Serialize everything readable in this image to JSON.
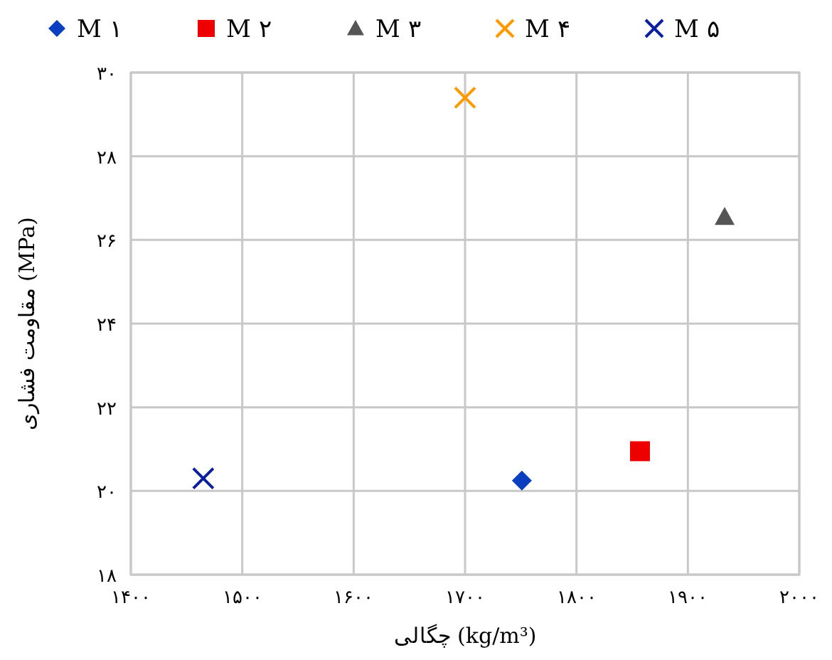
{
  "chart_data": {
    "type": "scatter",
    "xlabel": "چگالی (kg/m³)",
    "ylabel": "مقاومت فشاری (MPa)",
    "xlim": [
      1400,
      2000
    ],
    "ylim": [
      18,
      30
    ],
    "xticks": [
      {
        "value": 1400,
        "label": "۱۴۰۰"
      },
      {
        "value": 1500,
        "label": "۱۵۰۰"
      },
      {
        "value": 1600,
        "label": "۱۶۰۰"
      },
      {
        "value": 1700,
        "label": "۱۷۰۰"
      },
      {
        "value": 1800,
        "label": "۱۸۰۰"
      },
      {
        "value": 1900,
        "label": "۱۹۰۰"
      },
      {
        "value": 2000,
        "label": "۲۰۰۰"
      }
    ],
    "yticks": [
      {
        "value": 18,
        "label": "۱۸"
      },
      {
        "value": 20,
        "label": "۲۰"
      },
      {
        "value": 22,
        "label": "۲۲"
      },
      {
        "value": 24,
        "label": "۲۴"
      },
      {
        "value": 26,
        "label": "۲۶"
      },
      {
        "value": 28,
        "label": "۲۸"
      },
      {
        "value": 30,
        "label": "۳۰"
      }
    ],
    "grid": true,
    "legend": "top",
    "series": [
      {
        "name": "M ۱",
        "color": "#0a3fbf",
        "marker": "diamond",
        "x": [
          1751
        ],
        "values": [
          20.25
        ]
      },
      {
        "name": "M ۲",
        "color": "#ee0000",
        "marker": "square",
        "x": [
          1857
        ],
        "values": [
          20.95
        ]
      },
      {
        "name": "M ۳",
        "color": "#555555",
        "marker": "triangle",
        "x": [
          1933
        ],
        "values": [
          26.55
        ]
      },
      {
        "name": "M ۴",
        "color": "#ff9900",
        "marker": "cross",
        "x": [
          1700
        ],
        "values": [
          29.4
        ]
      },
      {
        "name": "M ۵",
        "color": "#0a1f9f",
        "marker": "cross",
        "x": [
          1465
        ],
        "values": [
          20.3
        ]
      }
    ]
  }
}
